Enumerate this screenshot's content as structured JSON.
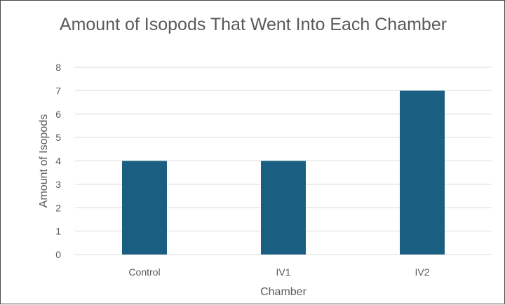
{
  "chart_data": {
    "type": "bar",
    "title": "Amount of Isopods That Went Into Each Chamber",
    "categories": [
      "Control",
      "IV1",
      "IV2"
    ],
    "values": [
      4,
      4,
      7
    ],
    "xlabel": "Chamber",
    "ylabel": "Amount of Isopods",
    "ylim": [
      0,
      8
    ],
    "yticks": [
      0,
      1,
      2,
      3,
      4,
      5,
      6,
      7,
      8
    ],
    "grid": true,
    "legend": "none",
    "colors": {
      "bar": "#1a5f82",
      "gridline": "#d9d9d9",
      "text": "#595959"
    }
  }
}
